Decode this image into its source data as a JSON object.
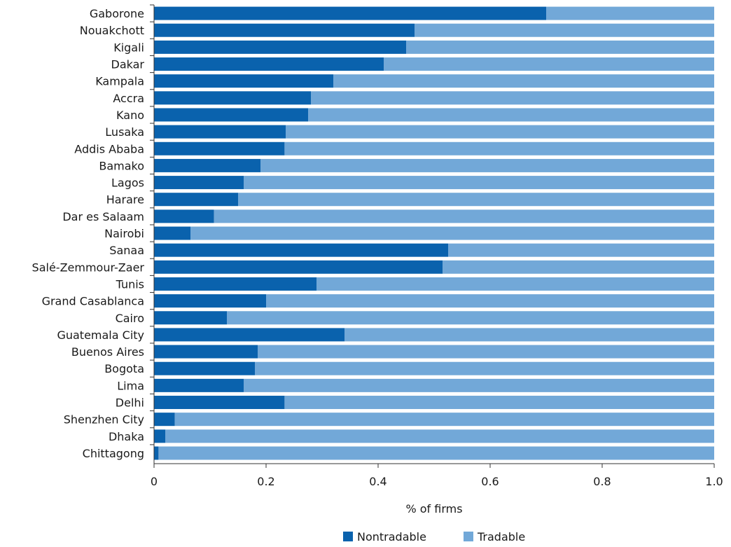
{
  "chart_data": {
    "type": "bar",
    "orientation": "horizontal",
    "stacked": true,
    "categories": [
      "Gaborone",
      "Nouakchott",
      "Kigali",
      "Dakar",
      "Kampala",
      "Accra",
      "Kano",
      "Lusaka",
      "Addis Ababa",
      "Bamako",
      "Lagos",
      "Harare",
      "Dar es Salaam",
      "Nairobi",
      "Sanaa",
      "Salé-Zemmour-Zaer",
      "Tunis",
      "Grand Casablanca",
      "Cairo",
      "Guatemala City",
      "Buenos Aires",
      "Bogota",
      "Lima",
      "Delhi",
      "Shenzhen City",
      "Dhaka",
      "Chittagong"
    ],
    "series": [
      {
        "name": "Nontradable",
        "color": "#0a62ad",
        "values": [
          0.7,
          0.465,
          0.45,
          0.41,
          0.32,
          0.28,
          0.275,
          0.235,
          0.233,
          0.19,
          0.16,
          0.15,
          0.107,
          0.065,
          0.525,
          0.515,
          0.29,
          0.2,
          0.13,
          0.34,
          0.185,
          0.18,
          0.16,
          0.233,
          0.037,
          0.02,
          0.008
        ]
      },
      {
        "name": "Tradable",
        "color": "#72a8d8",
        "values": [
          0.3,
          0.535,
          0.55,
          0.59,
          0.68,
          0.72,
          0.725,
          0.765,
          0.767,
          0.81,
          0.84,
          0.85,
          0.893,
          0.935,
          0.475,
          0.485,
          0.71,
          0.8,
          0.87,
          0.66,
          0.815,
          0.82,
          0.84,
          0.767,
          0.963,
          0.98,
          0.992
        ]
      }
    ],
    "x_ticks": [
      "0",
      "0.2",
      "0.4",
      "0.6",
      "0.8",
      "1.0"
    ],
    "xlim": [
      0,
      1.0
    ],
    "xlabel": "% of firms",
    "ylabel": "",
    "grid": false,
    "legend_position": "bottom-center"
  }
}
